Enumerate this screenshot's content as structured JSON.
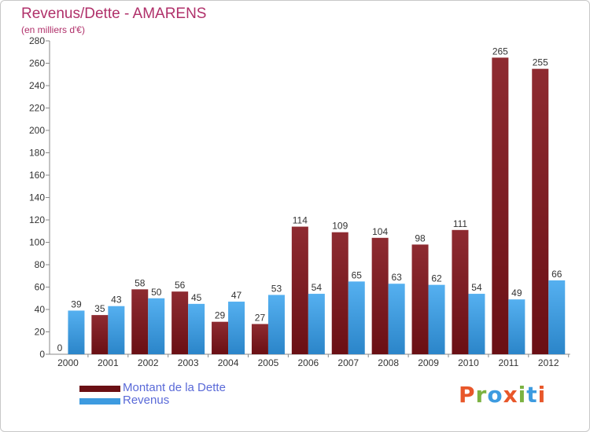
{
  "chart_data": {
    "type": "bar",
    "title": "Revenus/Dette - AMARENS",
    "subtitle": "(en milliers d'€)",
    "categories": [
      "2000",
      "2001",
      "2002",
      "2003",
      "2004",
      "2005",
      "2006",
      "2007",
      "2008",
      "2009",
      "2010",
      "2011",
      "2012"
    ],
    "series": [
      {
        "name": "Montant de la Dette",
        "color": "#8b1a1f",
        "values": [
          0,
          35,
          58,
          56,
          29,
          27,
          114,
          109,
          104,
          98,
          111,
          265,
          255
        ]
      },
      {
        "name": "Revenus",
        "color": "#3d9be0",
        "values": [
          39,
          43,
          50,
          45,
          47,
          53,
          54,
          65,
          63,
          62,
          54,
          49,
          66
        ]
      }
    ],
    "ylim": [
      0,
      280
    ],
    "yticks": [
      0,
      20,
      40,
      60,
      80,
      100,
      120,
      140,
      160,
      180,
      200,
      220,
      240,
      260,
      280
    ],
    "grid": false,
    "legend_position": "bottom-left"
  },
  "logo": {
    "text": "Proxiti",
    "letter_colors": [
      "#e8572a",
      "#7bb241",
      "#3d9be0",
      "#e8572a",
      "#7bb241",
      "#3d9be0",
      "#e8572a"
    ]
  }
}
